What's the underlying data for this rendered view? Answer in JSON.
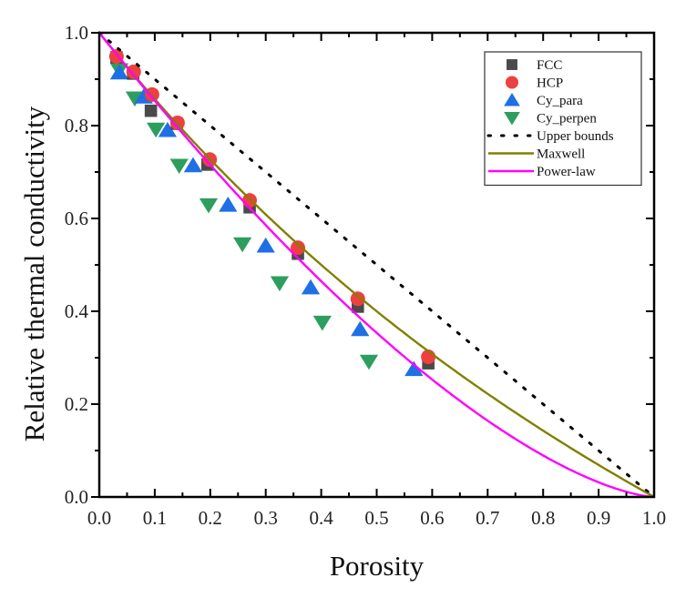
{
  "chart_data": {
    "type": "scatter",
    "title": "",
    "xlabel": "Porosity",
    "ylabel": "Relative thermal conductivity",
    "xlim": [
      0.0,
      1.0
    ],
    "ylim": [
      0.0,
      1.0
    ],
    "xticks": [
      "0.0",
      "0.1",
      "0.2",
      "0.3",
      "0.4",
      "0.5",
      "0.6",
      "0.7",
      "0.8",
      "0.9",
      "1.0"
    ],
    "yticks": [
      "0.0",
      "0.2",
      "0.4",
      "0.6",
      "0.8",
      "1.0"
    ],
    "xtick_values": [
      0.0,
      0.1,
      0.2,
      0.3,
      0.4,
      0.5,
      0.6,
      0.7,
      0.8,
      0.9,
      1.0
    ],
    "ytick_values": [
      0.0,
      0.2,
      0.4,
      0.6,
      0.8,
      1.0
    ],
    "grid": false,
    "legend_position": "top-right",
    "series": [
      {
        "name": "FCC",
        "kind": "scatter",
        "marker": "square",
        "color": "#4a4a4a",
        "x": [
          0.031,
          0.061,
          0.093,
          0.14,
          0.195,
          0.271,
          0.358,
          0.466,
          0.593
        ],
        "y": [
          0.947,
          0.912,
          0.832,
          0.804,
          0.716,
          0.624,
          0.524,
          0.41,
          0.288
        ]
      },
      {
        "name": "HCP",
        "kind": "scatter",
        "marker": "circle",
        "color": "#ef3f3f",
        "x": [
          0.031,
          0.062,
          0.095,
          0.141,
          0.199,
          0.271,
          0.358,
          0.466,
          0.593
        ],
        "y": [
          0.949,
          0.916,
          0.867,
          0.806,
          0.727,
          0.639,
          0.537,
          0.427,
          0.302
        ]
      },
      {
        "name": "Cy_para",
        "kind": "scatter",
        "marker": "triangle-up",
        "color": "#1f6fe6",
        "x": [
          0.036,
          0.08,
          0.123,
          0.169,
          0.232,
          0.3,
          0.381,
          0.47,
          0.567
        ],
        "y": [
          0.914,
          0.862,
          0.79,
          0.714,
          0.629,
          0.541,
          0.451,
          0.361,
          0.275
        ]
      },
      {
        "name": "Cy_perpen",
        "kind": "scatter",
        "marker": "triangle-down",
        "color": "#2e9e5e",
        "x": [
          0.036,
          0.064,
          0.102,
          0.144,
          0.197,
          0.258,
          0.325,
          0.402,
          0.486
        ],
        "y": [
          0.92,
          0.859,
          0.792,
          0.714,
          0.629,
          0.545,
          0.461,
          0.376,
          0.292
        ]
      },
      {
        "name": "Upper bounds",
        "kind": "line",
        "style": "dotted",
        "color": "#000000",
        "formula": "1 - porosity",
        "x": [
          0.0,
          1.0
        ],
        "y": [
          1.0,
          0.0
        ]
      },
      {
        "name": "Maxwell",
        "kind": "line",
        "style": "solid",
        "color": "#808000",
        "formula": "(1 - porosity) / (1 + porosity / 2)",
        "x": [
          0.0,
          0.1,
          0.2,
          0.3,
          0.4,
          0.5,
          0.6,
          0.7,
          0.8,
          0.9,
          1.0
        ],
        "y": [
          1.0,
          0.857,
          0.727,
          0.609,
          0.5,
          0.4,
          0.308,
          0.222,
          0.143,
          0.069,
          0.0
        ]
      },
      {
        "name": "Power-law",
        "kind": "line",
        "style": "solid",
        "color": "#ff00ff",
        "formula": "(1 - porosity)^1.5",
        "x": [
          0.0,
          0.1,
          0.2,
          0.3,
          0.4,
          0.5,
          0.6,
          0.7,
          0.8,
          0.9,
          1.0
        ],
        "y": [
          1.0,
          0.854,
          0.716,
          0.586,
          0.465,
          0.354,
          0.253,
          0.164,
          0.089,
          0.032,
          0.0
        ]
      }
    ],
    "legend": [
      "FCC",
      "HCP",
      "Cy_para",
      "Cy_perpen",
      "Upper bounds",
      "Maxwell",
      "Power-law"
    ]
  }
}
